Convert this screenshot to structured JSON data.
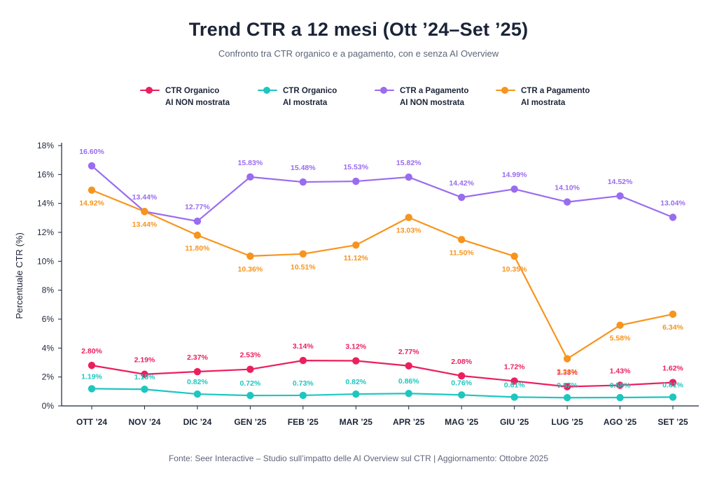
{
  "header": {
    "title": "Trend CTR a 12 mesi (Ott ’24–Set ’25)",
    "subtitle": "Confronto tra CTR organico e a pagamento, con e senza AI Overview"
  },
  "legend": [
    {
      "line1": "CTR Organico",
      "line2": "AI NON mostrata",
      "color": "#ec1f5e"
    },
    {
      "line1": "CTR Organico",
      "line2": "AI mostrata",
      "color": "#1ec6c0"
    },
    {
      "line1": "CTR a Pagamento",
      "line2": "AI NON mostrata",
      "color": "#9a6cf0"
    },
    {
      "line1": "CTR a Pagamento",
      "line2": "AI mostrata",
      "color": "#f7941d"
    }
  ],
  "footer": {
    "source": "Fonte: Seer Interactive – Studio sull’impatto delle AI Overview sul CTR | Aggiornamento: Ottobre 2025"
  },
  "chart_data": {
    "type": "line",
    "ylabel": "Percentuale CTR (%)",
    "xlabel": "",
    "ylim": [
      0,
      18
    ],
    "yticks": [
      "0%",
      "2%",
      "4%",
      "6%",
      "8%",
      "10%",
      "12%",
      "14%",
      "16%",
      "18%"
    ],
    "categories": [
      "OTT ’24",
      "NOV ’24",
      "DIC ’24",
      "GEN ’25",
      "FEB ’25",
      "MAR ’25",
      "APR ’25",
      "MAG ’25",
      "GIU ’25",
      "LUG ’25",
      "AGO ’25",
      "SET ’25"
    ],
    "grid": false,
    "legend_position": "top",
    "series": [
      {
        "name": "CTR Organico AI NON mostrata",
        "color": "#ec1f5e",
        "values": [
          2.8,
          2.19,
          2.37,
          2.53,
          3.14,
          3.12,
          2.77,
          2.08,
          1.72,
          1.33,
          1.43,
          1.62
        ],
        "labels": [
          "2.80%",
          "2.19%",
          "2.37%",
          "2.53%",
          "3.14%",
          "3.12%",
          "2.77%",
          "2.08%",
          "1.72%",
          "1.33%",
          "1.43%",
          "1.62%"
        ]
      },
      {
        "name": "CTR Organico AI mostrata",
        "color": "#1ec6c0",
        "values": [
          1.19,
          1.15,
          0.82,
          0.72,
          0.73,
          0.82,
          0.86,
          0.76,
          0.61,
          0.57,
          0.58,
          0.61
        ],
        "labels": [
          "1.19%",
          "1.15%",
          "0.82%",
          "0.72%",
          "0.73%",
          "0.82%",
          "0.86%",
          "0.76%",
          "0.61%",
          "0.57%",
          "0.58%",
          "0.61%"
        ]
      },
      {
        "name": "CTR a Pagamento AI NON mostrata",
        "color": "#9a6cf0",
        "values": [
          16.6,
          13.44,
          12.77,
          15.83,
          15.48,
          15.53,
          15.82,
          14.42,
          14.99,
          14.1,
          14.52,
          13.04
        ],
        "labels": [
          "16.60%",
          "13.44%",
          "12.77%",
          "15.83%",
          "15.48%",
          "15.53%",
          "15.82%",
          "14.42%",
          "14.99%",
          "14.10%",
          "14.52%",
          "13.04%"
        ]
      },
      {
        "name": "CTR a Pagamento AI mostrata",
        "color": "#f7941d",
        "values": [
          14.92,
          13.44,
          11.8,
          10.36,
          10.51,
          11.12,
          13.03,
          11.5,
          10.35,
          3.26,
          5.58,
          6.34
        ],
        "labels": [
          "14.92%",
          "13.44%",
          "11.80%",
          "10.36%",
          "10.51%",
          "11.12%",
          "13.03%",
          "11.50%",
          "10.35%",
          "3.26%",
          "5.58%",
          "6.34%"
        ]
      }
    ]
  }
}
